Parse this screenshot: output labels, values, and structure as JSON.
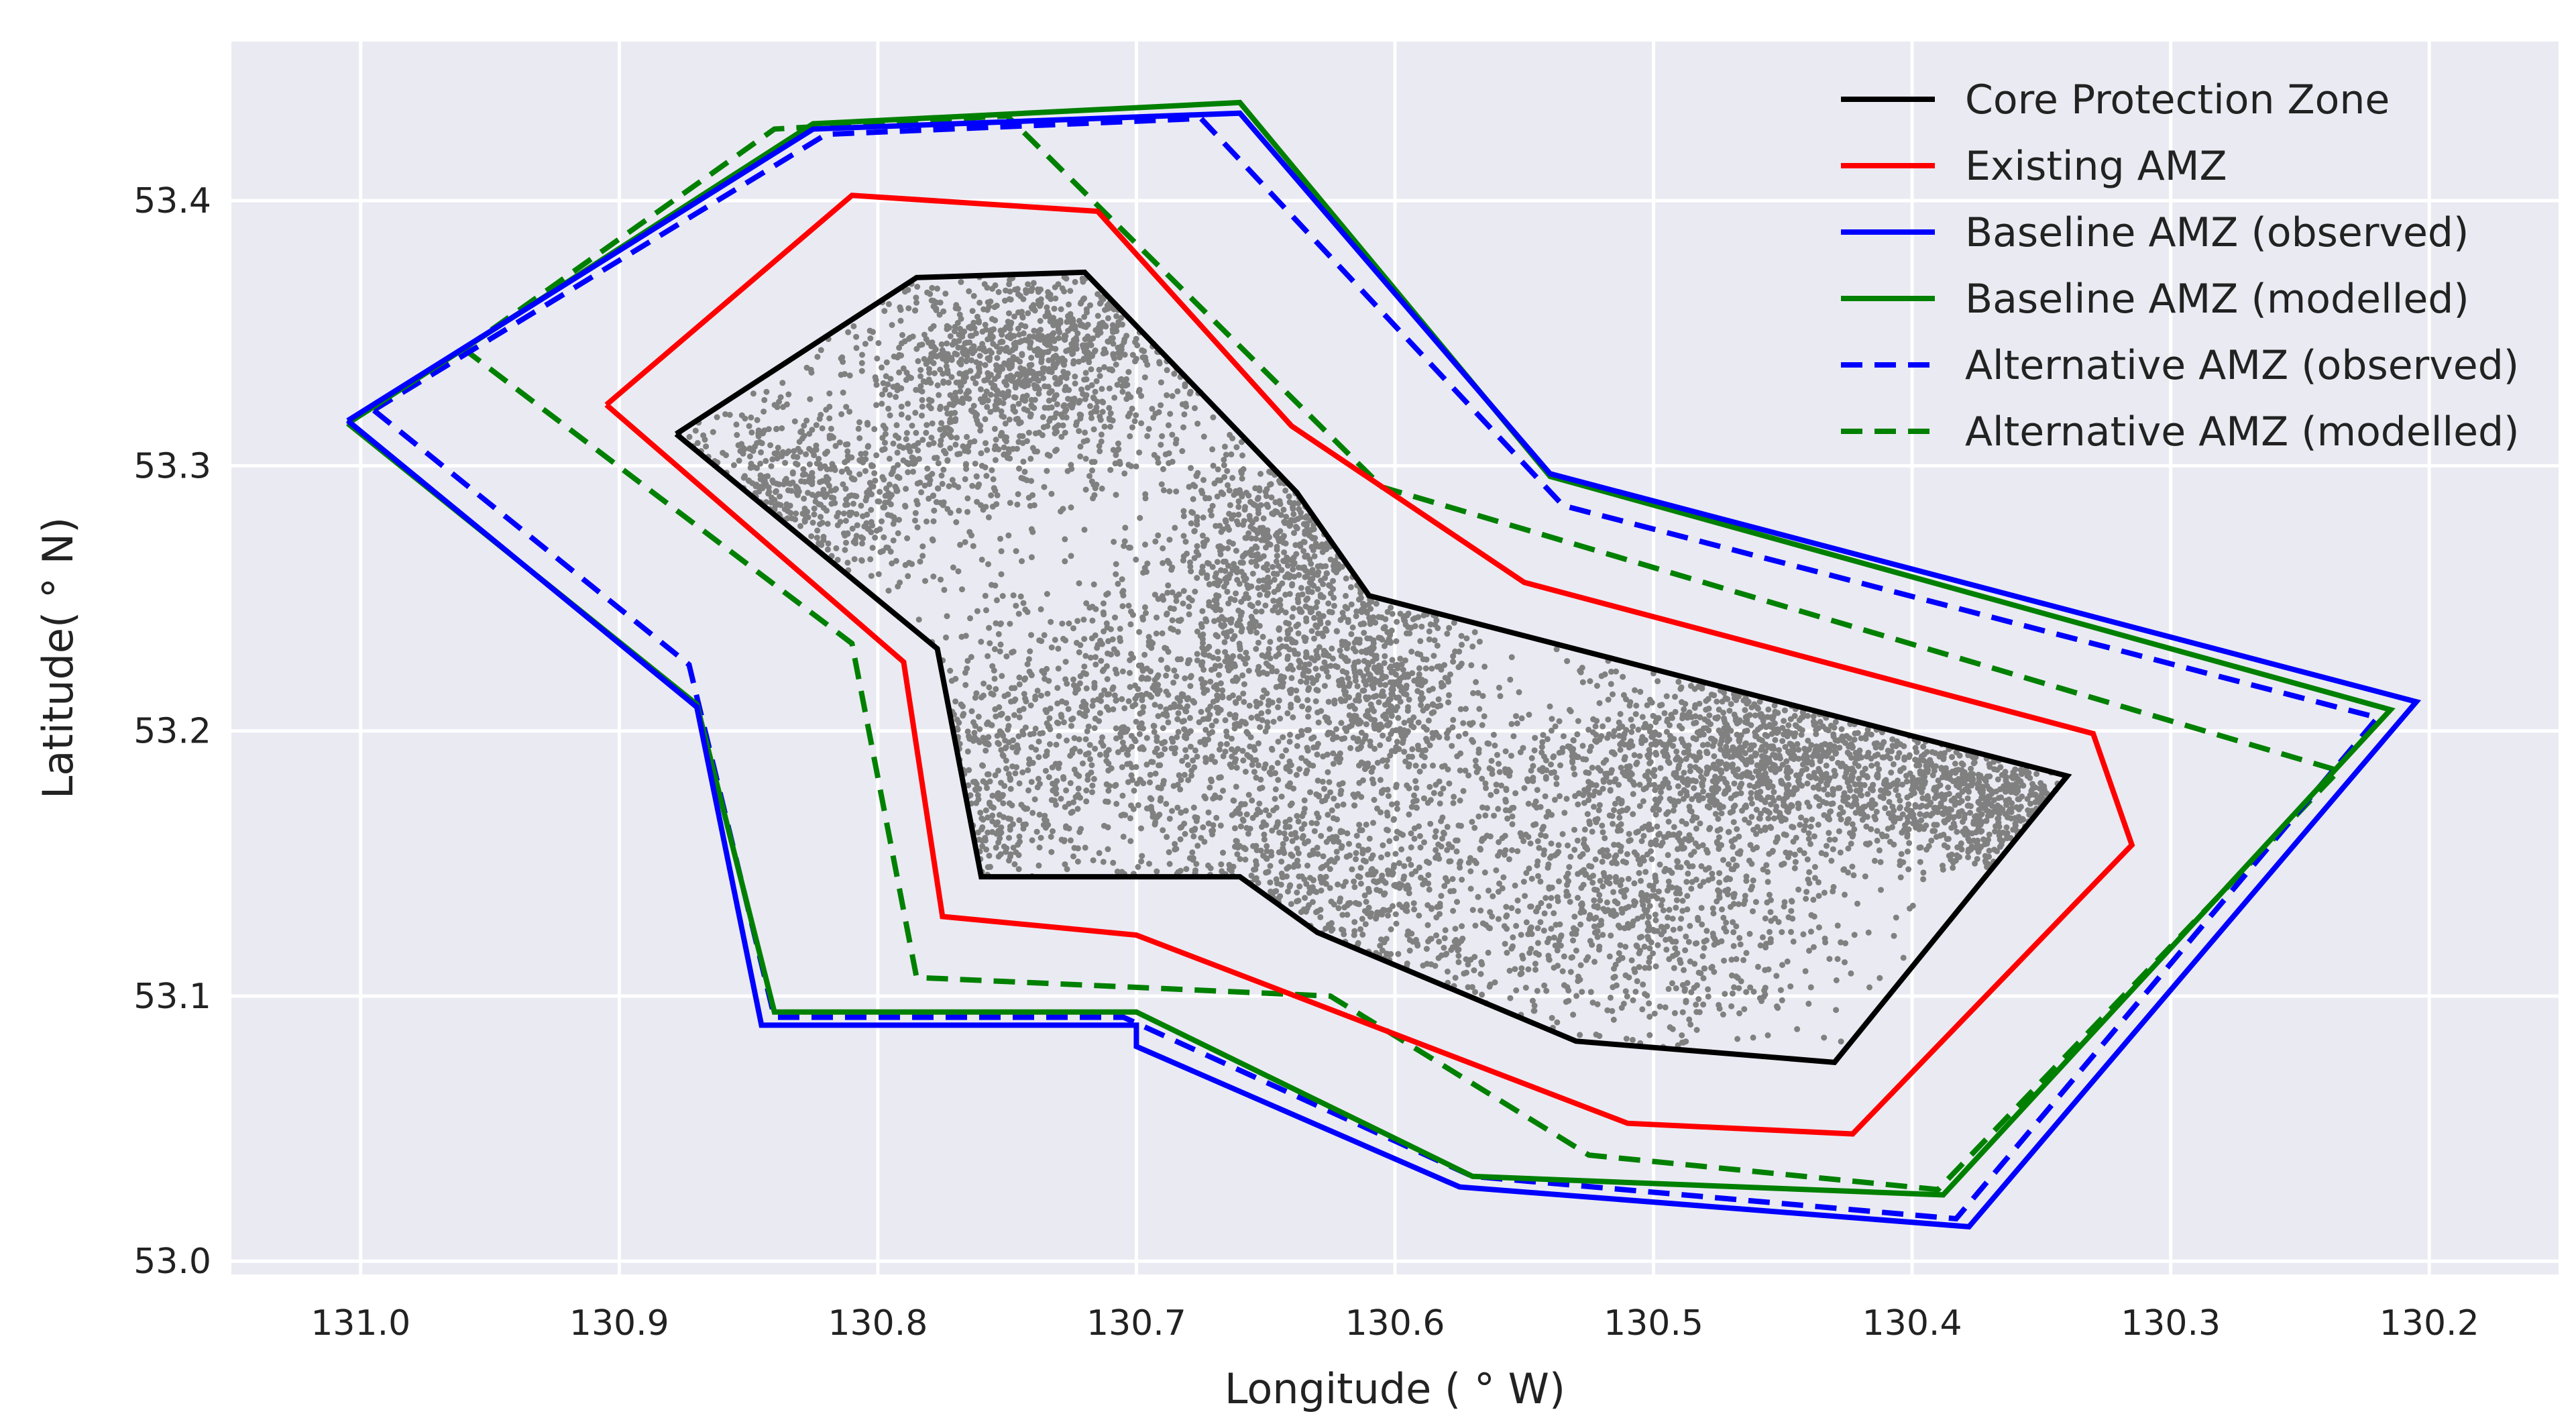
{
  "chart_data": {
    "type": "line",
    "title": "",
    "xlabel": "Longitude ( ° W)",
    "ylabel": "Latitude( ° N)",
    "xlim": [
      131.05,
      130.15
    ],
    "ylim": [
      52.995,
      53.46
    ],
    "x_reversed": true,
    "grid": true,
    "legend_position": "top-right",
    "x_ticks": [
      131.0,
      130.9,
      130.8,
      130.7,
      130.6,
      130.5,
      130.4,
      130.3,
      130.2
    ],
    "x_tick_labels": [
      "131.0",
      "130.9",
      "130.8",
      "130.7",
      "130.6",
      "130.5",
      "130.4",
      "130.3",
      "130.2"
    ],
    "y_ticks": [
      53.0,
      53.1,
      53.2,
      53.3,
      53.4
    ],
    "y_tick_labels": [
      "53.0",
      "53.1",
      "53.2",
      "53.3",
      "53.4"
    ],
    "colors": {
      "background": "#ffffff",
      "plot_background": "#eaeaf2",
      "grid": "#ffffff",
      "reef_points": "#808080"
    },
    "series": [
      {
        "name": "Core Protection Zone",
        "color": "#000000",
        "style": "solid",
        "x": [
          130.878,
          130.785,
          130.72,
          130.638,
          130.61,
          130.34,
          130.43,
          130.53,
          130.63,
          130.66,
          130.76,
          130.777,
          130.878
        ],
        "y": [
          53.312,
          53.371,
          53.373,
          53.29,
          53.251,
          53.183,
          53.075,
          53.083,
          53.124,
          53.145,
          53.145,
          53.231,
          53.312
        ]
      },
      {
        "name": "Existing AMZ",
        "color": "#ff0000",
        "style": "solid",
        "x": [
          130.905,
          130.81,
          130.715,
          130.64,
          130.55,
          130.33,
          130.315,
          130.423,
          130.51,
          130.7,
          130.775,
          130.79,
          130.905
        ],
        "y": [
          53.323,
          53.402,
          53.396,
          53.315,
          53.256,
          53.199,
          53.157,
          53.048,
          53.052,
          53.123,
          53.13,
          53.226,
          53.323
        ]
      },
      {
        "name": "Baseline AMZ (observed)",
        "color": "#0000ff",
        "style": "solid",
        "x": [
          131.005,
          130.825,
          130.66,
          130.54,
          130.205,
          130.378,
          130.575,
          130.7,
          130.7,
          130.845,
          130.87,
          131.005
        ],
        "y": [
          53.317,
          53.427,
          53.433,
          53.297,
          53.211,
          53.013,
          53.028,
          53.081,
          53.089,
          53.089,
          53.209,
          53.317
        ]
      },
      {
        "name": "Baseline AMZ (modelled)",
        "color": "#008000",
        "style": "solid",
        "x": [
          131.005,
          130.825,
          130.66,
          130.54,
          130.215,
          130.388,
          130.57,
          130.7,
          130.84,
          130.87,
          131.005
        ],
        "y": [
          53.316,
          53.429,
          53.437,
          53.296,
          53.208,
          53.025,
          53.032,
          53.094,
          53.094,
          53.21,
          53.316
        ]
      },
      {
        "name": "Alternative AMZ (observed)",
        "color": "#0000ff",
        "style": "dashed",
        "x": [
          130.995,
          130.82,
          130.675,
          130.535,
          130.22,
          130.383,
          130.57,
          130.705,
          130.84,
          130.873,
          130.995
        ],
        "y": [
          53.321,
          53.425,
          53.431,
          53.285,
          53.205,
          53.016,
          53.032,
          53.092,
          53.092,
          53.225,
          53.321
        ]
      },
      {
        "name": "Alternative AMZ (modelled)",
        "color": "#008000",
        "style": "dashed",
        "x": [
          130.96,
          130.84,
          130.75,
          130.605,
          130.235,
          130.39,
          130.525,
          130.625,
          130.785,
          130.81,
          130.96
        ],
        "y": [
          53.344,
          53.427,
          53.432,
          53.292,
          53.185,
          53.027,
          53.04,
          53.1,
          53.107,
          53.233,
          53.344
        ]
      }
    ]
  }
}
